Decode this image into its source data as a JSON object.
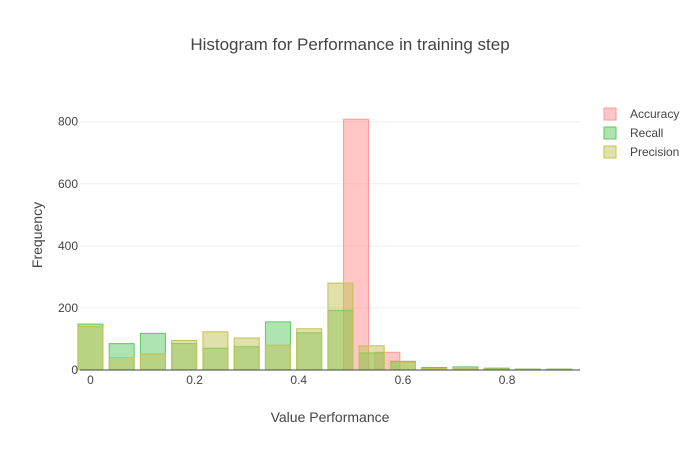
{
  "chart_data": {
    "type": "bar",
    "title": "Histogram for Performance in training step",
    "xlabel": "Value Performance",
    "ylabel": "Frequency",
    "xlim": [
      -0.02,
      0.94
    ],
    "ylim": [
      0,
      870
    ],
    "x_ticks": [
      0,
      0.2,
      0.4,
      0.6,
      0.8
    ],
    "x_tick_labels": [
      "0",
      "0.2",
      "0.4",
      "0.6",
      "0.8"
    ],
    "y_ticks": [
      0,
      200,
      400,
      600,
      800
    ],
    "y_tick_labels": [
      "0",
      "200",
      "400",
      "600",
      "800"
    ],
    "bin_width": 0.06,
    "bar_width": 0.048,
    "grid": true,
    "legend_position": "right",
    "series": [
      {
        "name": "Accuracy",
        "color": "#ff9896",
        "opacity": 0.55,
        "bins": [
          {
            "x": 0.51,
            "value": 808
          },
          {
            "x": 0.57,
            "value": 57
          }
        ]
      },
      {
        "name": "Recall",
        "color": "#5ec962",
        "opacity": 0.5,
        "bins": [
          {
            "x": 0.0,
            "value": 148
          },
          {
            "x": 0.06,
            "value": 85
          },
          {
            "x": 0.12,
            "value": 118
          },
          {
            "x": 0.18,
            "value": 85
          },
          {
            "x": 0.24,
            "value": 70
          },
          {
            "x": 0.3,
            "value": 75
          },
          {
            "x": 0.36,
            "value": 155
          },
          {
            "x": 0.42,
            "value": 120
          },
          {
            "x": 0.48,
            "value": 192
          },
          {
            "x": 0.54,
            "value": 55
          },
          {
            "x": 0.6,
            "value": 28
          },
          {
            "x": 0.66,
            "value": 8
          },
          {
            "x": 0.72,
            "value": 10
          },
          {
            "x": 0.78,
            "value": 6
          },
          {
            "x": 0.84,
            "value": 3
          },
          {
            "x": 0.9,
            "value": 3
          }
        ]
      },
      {
        "name": "Precision",
        "color": "#c2c255",
        "opacity": 0.5,
        "bins": [
          {
            "x": 0.0,
            "value": 140
          },
          {
            "x": 0.06,
            "value": 40
          },
          {
            "x": 0.12,
            "value": 52
          },
          {
            "x": 0.18,
            "value": 95
          },
          {
            "x": 0.24,
            "value": 123
          },
          {
            "x": 0.3,
            "value": 103
          },
          {
            "x": 0.36,
            "value": 80
          },
          {
            "x": 0.42,
            "value": 133
          },
          {
            "x": 0.48,
            "value": 280
          },
          {
            "x": 0.54,
            "value": 78
          },
          {
            "x": 0.6,
            "value": 25
          },
          {
            "x": 0.66,
            "value": 5
          },
          {
            "x": 0.72,
            "value": 4
          },
          {
            "x": 0.78,
            "value": 3
          },
          {
            "x": 0.84,
            "value": 2
          },
          {
            "x": 0.9,
            "value": 2
          }
        ]
      }
    ]
  }
}
